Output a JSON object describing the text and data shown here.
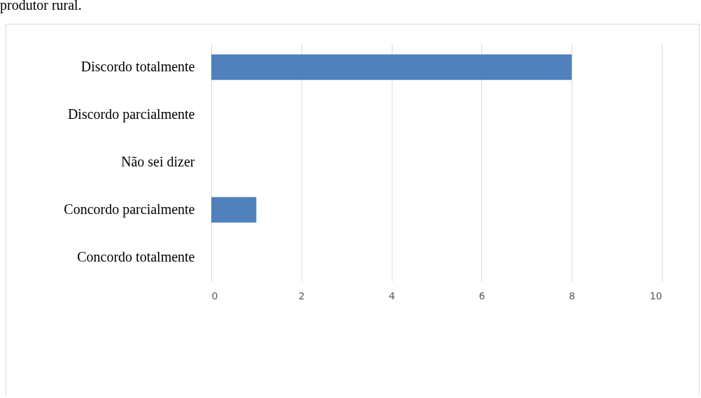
{
  "chart_data": {
    "type": "bar",
    "orientation": "horizontal",
    "title": "produtor rural.",
    "categories": [
      "Discordo totalmente",
      "Discordo parcialmente",
      "Não sei dizer",
      "Concordo parcialmente",
      "Concordo totalmente"
    ],
    "values": [
      8,
      0,
      0,
      1,
      0
    ],
    "color": "#4f81bd",
    "xlim": [
      0,
      10
    ],
    "xticks": [
      0,
      2,
      4,
      6,
      8,
      10
    ],
    "grid": "x"
  }
}
